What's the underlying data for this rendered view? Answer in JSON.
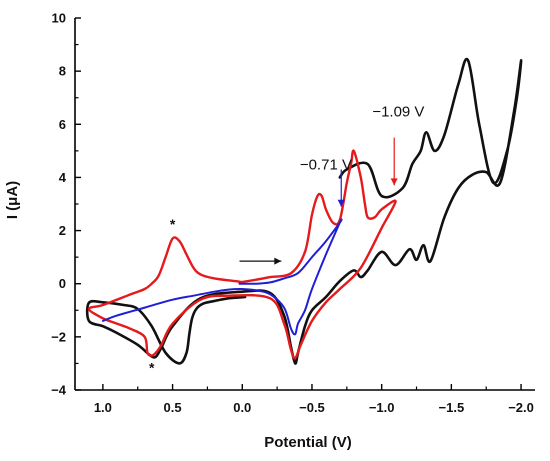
{
  "chart_data": {
    "type": "line",
    "title": "",
    "xlabel": "Potential (V)",
    "ylabel": "I (μA)",
    "xlim": [
      1.2,
      -2.1
    ],
    "ylim": [
      -4,
      10
    ],
    "x_reversed": true,
    "x_ticks": [
      1.0,
      0.5,
      0.0,
      -0.5,
      -1.0,
      -1.5,
      -2.0
    ],
    "x_tick_labels": [
      "1.0",
      "0.5",
      "0.0",
      "−0.5",
      "−1.0",
      "−1.5",
      "−2.0"
    ],
    "y_ticks": [
      -4,
      -2,
      0,
      2,
      4,
      6,
      8,
      10
    ],
    "y_tick_labels": [
      "−4",
      "−2",
      "0",
      "2",
      "4",
      "6",
      "8",
      "10"
    ],
    "grid": false,
    "series": [
      {
        "color": "#111111",
        "x": [
          -0.02,
          0.1,
          0.2,
          0.28,
          0.33,
          0.36,
          0.38,
          0.4,
          0.45,
          0.55,
          0.65,
          0.75,
          0.85,
          1.0,
          1.1,
          1.1,
          1.0,
          0.9,
          0.75,
          0.66,
          0.62,
          0.58,
          0.5,
          0.3,
          0.0,
          -0.2,
          -0.3,
          -0.35,
          -0.38,
          -0.4,
          -0.45,
          -0.5,
          -0.6,
          -0.7,
          -0.8,
          -0.85,
          -0.9,
          -1.0,
          -1.1,
          -1.2,
          -1.25,
          -1.3,
          -1.35,
          -1.45,
          -1.55,
          -1.65,
          -1.75,
          -1.85,
          -1.95,
          -2.0,
          -1.97,
          -1.9,
          -1.8,
          -1.7,
          -1.62,
          -1.55,
          -1.45,
          -1.38,
          -1.32,
          -1.28,
          -1.22,
          -1.15,
          -1.0,
          -0.9,
          -0.75,
          -0.7
        ],
        "y": [
          -0.5,
          -0.55,
          -0.65,
          -0.75,
          -0.95,
          -1.3,
          -1.9,
          -2.6,
          -3.0,
          -2.6,
          -1.6,
          -0.95,
          -0.8,
          -0.7,
          -0.72,
          -1.4,
          -1.6,
          -1.85,
          -2.3,
          -2.7,
          -2.75,
          -2.4,
          -1.6,
          -0.55,
          -0.3,
          -0.35,
          -1.2,
          -2.4,
          -3.0,
          -2.6,
          -1.6,
          -1.0,
          -0.5,
          0.1,
          0.5,
          0.25,
          0.5,
          1.2,
          0.7,
          1.3,
          0.9,
          1.45,
          0.85,
          2.5,
          3.6,
          4.1,
          4.2,
          3.8,
          6.5,
          8.4,
          7.0,
          5.0,
          3.8,
          6.0,
          8.4,
          7.5,
          5.6,
          5.0,
          5.7,
          5.0,
          4.5,
          3.6,
          3.3,
          4.5,
          4.3,
          4.0
        ]
      },
      {
        "color": "#e41a1c",
        "x": [
          -0.01,
          0.05,
          0.2,
          0.3,
          0.35,
          0.4,
          0.45,
          0.5,
          0.55,
          0.6,
          0.65,
          0.7,
          0.8,
          1.0,
          1.1,
          1.0,
          0.9,
          0.8,
          0.7,
          0.68,
          0.65,
          0.62,
          0.58,
          0.5,
          0.3,
          0.1,
          -0.2,
          -0.3,
          -0.35,
          -0.38,
          -0.42,
          -0.5,
          -0.6,
          -0.7,
          -0.85,
          -1.0,
          -1.1,
          -1.0,
          -0.95,
          -0.9,
          -0.88,
          -0.85,
          -0.8,
          -0.78,
          -0.75,
          -0.7,
          -0.65,
          -0.6,
          -0.57,
          -0.54,
          -0.5,
          -0.45,
          -0.35,
          -0.2,
          -0.1,
          0.02
        ],
        "y": [
          0.05,
          0.1,
          0.2,
          0.35,
          0.6,
          1.1,
          1.6,
          1.7,
          1.0,
          0.3,
          0.0,
          -0.2,
          -0.4,
          -0.8,
          -0.95,
          -1.3,
          -1.5,
          -1.7,
          -2.0,
          -2.6,
          -2.7,
          -2.6,
          -2.3,
          -1.5,
          -0.6,
          -0.45,
          -0.55,
          -1.5,
          -2.5,
          -2.8,
          -2.3,
          -1.4,
          -0.7,
          -0.2,
          0.6,
          2.1,
          3.1,
          2.8,
          2.5,
          2.5,
          3.0,
          4.0,
          5.0,
          4.5,
          3.8,
          2.4,
          2.3,
          2.8,
          3.3,
          3.3,
          2.6,
          1.2,
          0.4,
          0.25,
          0.15,
          0.05
        ]
      },
      {
        "color": "#1f1fd6",
        "x": [
          0.02,
          -0.1,
          -0.2,
          -0.3,
          -0.4,
          -0.5,
          -0.6,
          -0.7,
          -0.7,
          -0.6,
          -0.5,
          -0.45,
          -0.4,
          -0.38,
          -0.35,
          -0.3,
          -0.2,
          -0.1,
          0.0,
          0.1,
          0.2,
          0.35,
          0.5,
          0.7,
          0.9,
          1.0
        ],
        "y": [
          0.0,
          0.0,
          0.05,
          0.2,
          0.4,
          1.0,
          1.6,
          2.3,
          2.3,
          1.1,
          -0.2,
          -1.0,
          -1.5,
          -1.9,
          -1.7,
          -0.9,
          -0.4,
          -0.25,
          -0.2,
          -0.22,
          -0.3,
          -0.45,
          -0.6,
          -0.9,
          -1.2,
          -1.4
        ]
      }
    ],
    "annotations": [
      {
        "text": "−0.71 V",
        "x": -0.6,
        "y": 4.3
      },
      {
        "text": "−1.09 V",
        "x": -1.12,
        "y": 6.3
      },
      {
        "text": "*",
        "x": 0.5,
        "y": 2.05
      },
      {
        "text": "*",
        "x": 0.65,
        "y": -3.35
      }
    ],
    "arrows": [
      {
        "color": "#1f1fd6",
        "x": -0.71,
        "y_from": 4.3,
        "y_to": 2.9
      },
      {
        "color": "#e41a1c",
        "x": -1.09,
        "y_from": 5.5,
        "y_to": 3.7
      },
      {
        "color": "#111111",
        "x_from": 0.02,
        "x_to": -0.28,
        "y": 0.85
      }
    ]
  }
}
